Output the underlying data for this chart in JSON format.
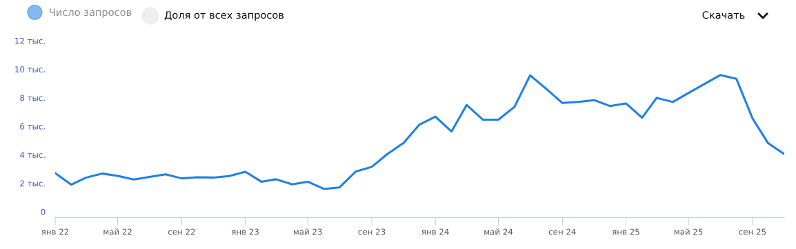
{
  "chart_data": {
    "type": "line",
    "x": [
      "2022-01",
      "2022-02",
      "2022-03",
      "2022-04",
      "2022-05",
      "2022-06",
      "2022-07",
      "2022-08",
      "2022-09",
      "2022-10",
      "2022-11",
      "2022-12",
      "2023-01",
      "2023-02",
      "2023-03",
      "2023-04",
      "2023-05",
      "2023-06",
      "2023-07",
      "2023-08",
      "2023-09",
      "2023-10",
      "2023-11",
      "2023-12",
      "2024-01",
      "2024-02",
      "2024-03",
      "2024-04",
      "2024-05",
      "2024-06",
      "2024-07",
      "2024-08",
      "2024-09",
      "2024-10",
      "2024-11",
      "2024-12",
      "2025-01",
      "2025-02",
      "2025-03",
      "2025-04",
      "2025-05",
      "2025-06",
      "2025-07",
      "2025-08",
      "2025-09",
      "2025-10",
      "2025-11"
    ],
    "series": [
      {
        "name": "Число запросов",
        "color": "#1f80e8",
        "values": [
          2.71,
          1.9,
          2.39,
          2.68,
          2.52,
          2.26,
          2.44,
          2.63,
          2.34,
          2.42,
          2.4,
          2.5,
          2.81,
          2.11,
          2.28,
          1.92,
          2.11,
          1.6,
          1.71,
          2.82,
          3.15,
          4.05,
          4.83,
          6.1,
          6.67,
          5.63,
          7.49,
          6.46,
          6.46,
          7.36,
          9.57,
          8.62,
          7.63,
          7.71,
          7.83,
          7.42,
          7.6,
          6.6,
          7.99,
          7.7,
          8.33,
          8.97,
          9.59,
          9.33,
          6.55,
          4.81,
          4.05
        ]
      }
    ],
    "xlim": [
      "2022-01",
      "2025-11"
    ],
    "xticks": [
      {
        "value": "2022-01",
        "label": "янв 22"
      },
      {
        "value": "2022-05",
        "label": "май 22"
      },
      {
        "value": "2022-09",
        "label": "сен 22"
      },
      {
        "value": "2023-01",
        "label": "янв 23"
      },
      {
        "value": "2023-05",
        "label": "май 23"
      },
      {
        "value": "2023-09",
        "label": "сен 23"
      },
      {
        "value": "2024-01",
        "label": "янв 24"
      },
      {
        "value": "2024-05",
        "label": "май 24"
      },
      {
        "value": "2024-09",
        "label": "сен 24"
      },
      {
        "value": "2025-01",
        "label": "янв 25"
      },
      {
        "value": "2025-05",
        "label": "май 25"
      },
      {
        "value": "2025-09",
        "label": "сен 25"
      }
    ],
    "ylim": [
      0,
      12
    ],
    "yticks": [
      0,
      {
        "value": 2,
        "label": "2 тыс."
      },
      {
        "value": 4,
        "label": "4 тыс."
      },
      {
        "value": 6,
        "label": "6 тыс."
      },
      {
        "value": 8,
        "label": "8 тыс."
      },
      {
        "value": 10,
        "label": "10 тыс."
      },
      {
        "value": 12,
        "label": "12 тыс."
      }
    ],
    "grid": false,
    "legend": "top left",
    "marker": "none",
    "line_style": "solid",
    "annotations": [
      "Доля от всех запросов",
      "Скачать"
    ]
  }
}
